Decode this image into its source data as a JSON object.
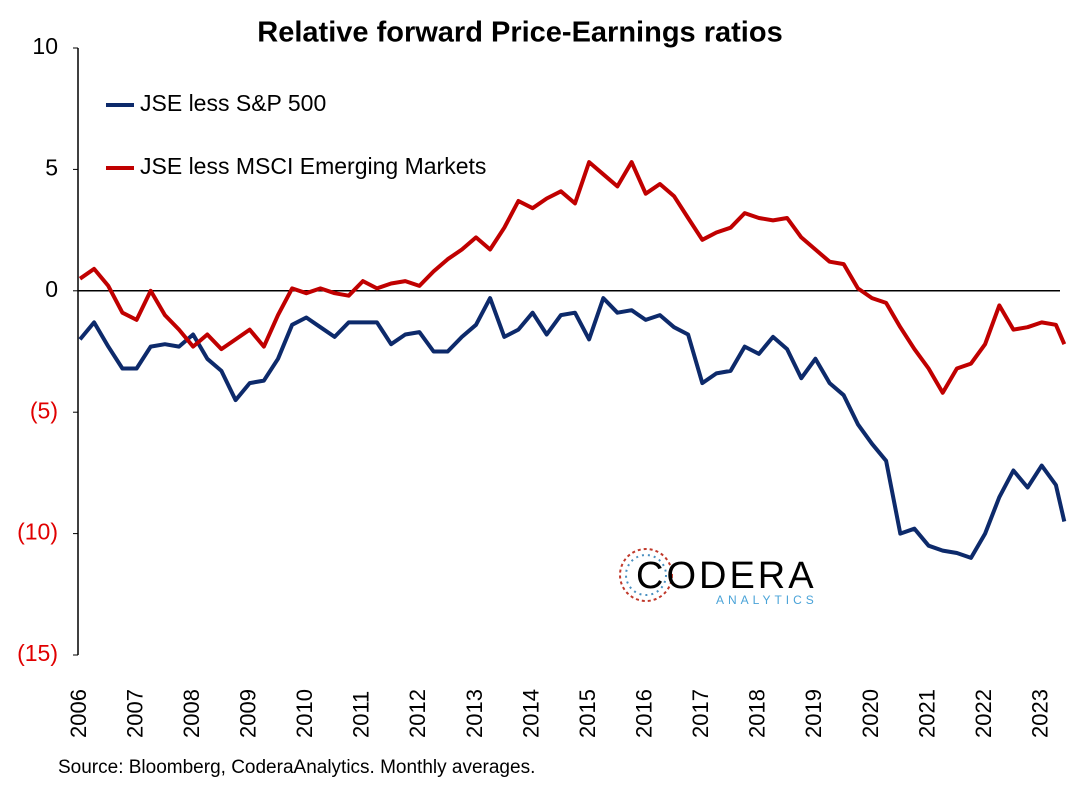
{
  "chart_data": {
    "type": "line",
    "title": "Relative forward Price-Earnings ratios",
    "source": "Source: Bloomberg, CoderaAnalytics. Monthly averages.",
    "logo": {
      "name": "CODERA",
      "tagline": "ANALYTICS"
    },
    "xlim": [
      2006,
      2023.5
    ],
    "xticks": [
      2006,
      2007,
      2008,
      2009,
      2010,
      2011,
      2012,
      2013,
      2014,
      2015,
      2016,
      2017,
      2018,
      2019,
      2020,
      2021,
      2022,
      2023
    ],
    "ylim": [
      -15,
      10
    ],
    "yticks": [
      10,
      5,
      0,
      {
        "value": -5,
        "label": "(5)"
      },
      {
        "value": -10,
        "label": "(10)"
      },
      {
        "value": -15,
        "label": "(15)"
      }
    ],
    "negative_tick_color": "#e00000",
    "zero_line": true,
    "x": [
      2006.0,
      2006.25,
      2006.5,
      2006.75,
      2007.0,
      2007.25,
      2007.5,
      2007.75,
      2008.0,
      2008.25,
      2008.5,
      2008.75,
      2009.0,
      2009.25,
      2009.5,
      2009.75,
      2010.0,
      2010.25,
      2010.5,
      2010.75,
      2011.0,
      2011.25,
      2011.5,
      2011.75,
      2012.0,
      2012.25,
      2012.5,
      2012.75,
      2013.0,
      2013.25,
      2013.5,
      2013.75,
      2014.0,
      2014.25,
      2014.5,
      2014.75,
      2015.0,
      2015.25,
      2015.5,
      2015.75,
      2016.0,
      2016.25,
      2016.5,
      2016.75,
      2017.0,
      2017.25,
      2017.5,
      2017.75,
      2018.0,
      2018.25,
      2018.5,
      2018.75,
      2019.0,
      2019.25,
      2019.5,
      2019.75,
      2020.0,
      2020.25,
      2020.5,
      2020.75,
      2021.0,
      2021.25,
      2021.5,
      2021.75,
      2022.0,
      2022.25,
      2022.5,
      2022.75,
      2023.0,
      2023.25,
      2023.4
    ],
    "series": [
      {
        "name": "JSE less S&P 500",
        "color": "#0d2a6b",
        "values": [
          -2.0,
          -1.3,
          -2.3,
          -3.2,
          -3.2,
          -2.3,
          -2.2,
          -2.3,
          -1.8,
          -2.8,
          -3.3,
          -4.5,
          -3.8,
          -3.7,
          -2.8,
          -1.4,
          -1.1,
          -1.5,
          -1.9,
          -1.3,
          -1.3,
          -1.3,
          -2.2,
          -1.8,
          -1.7,
          -2.5,
          -2.5,
          -1.9,
          -1.4,
          -0.3,
          -1.9,
          -1.6,
          -0.9,
          -1.8,
          -1.0,
          -0.9,
          -2.0,
          -0.3,
          -0.9,
          -0.8,
          -1.2,
          -1.0,
          -1.5,
          -1.8,
          -3.8,
          -3.4,
          -3.3,
          -2.3,
          -2.6,
          -1.9,
          -2.4,
          -3.6,
          -2.8,
          -3.8,
          -4.3,
          -5.5,
          -6.3,
          -7.0,
          -10.0,
          -9.8,
          -10.5,
          -10.7,
          -10.8,
          -11.0,
          -10.0,
          -8.5,
          -7.4,
          -8.1,
          -7.2,
          -8.0,
          -9.5
        ]
      },
      {
        "name": "JSE less MSCI Emerging Markets",
        "color": "#c00000",
        "values": [
          0.5,
          0.9,
          0.2,
          -0.9,
          -1.2,
          0.0,
          -1.0,
          -1.6,
          -2.3,
          -1.8,
          -2.4,
          -2.0,
          -1.6,
          -2.3,
          -1.0,
          0.1,
          -0.1,
          0.1,
          -0.1,
          -0.2,
          0.4,
          0.1,
          0.3,
          0.4,
          0.2,
          0.8,
          1.3,
          1.7,
          2.2,
          1.7,
          2.6,
          3.7,
          3.4,
          3.8,
          4.1,
          3.6,
          5.3,
          4.8,
          4.3,
          5.3,
          4.0,
          4.4,
          3.9,
          3.0,
          2.1,
          2.4,
          2.6,
          3.2,
          3.0,
          2.9,
          3.0,
          2.2,
          1.7,
          1.2,
          1.1,
          0.1,
          -0.3,
          -0.5,
          -1.5,
          -2.4,
          -3.2,
          -4.2,
          -3.2,
          -3.0,
          -2.2,
          -0.6,
          -1.6,
          -1.5,
          -1.3,
          -1.4,
          -2.2
        ]
      }
    ]
  }
}
